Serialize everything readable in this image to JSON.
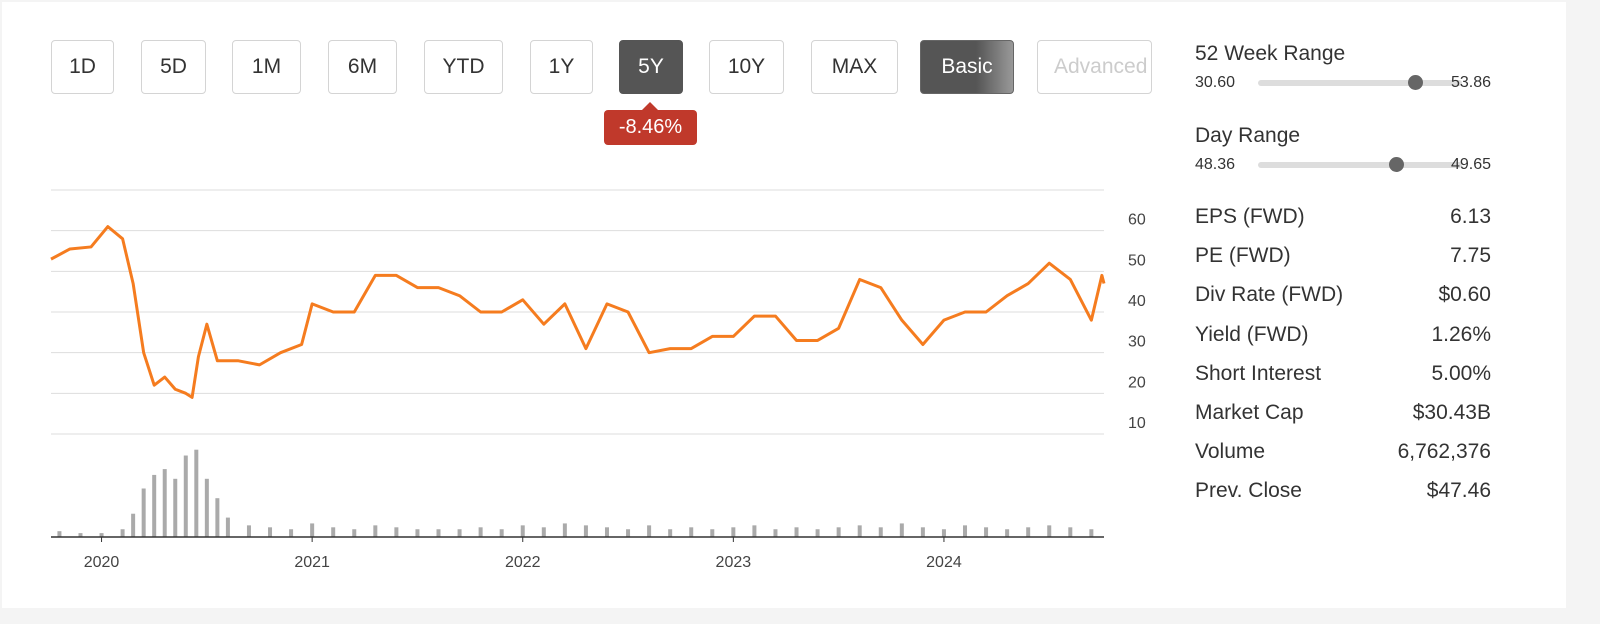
{
  "range_buttons": [
    "1D",
    "5D",
    "1M",
    "6M",
    "YTD",
    "1Y",
    "5Y",
    "10Y",
    "MAX"
  ],
  "view_buttons": [
    "Basic",
    "Advanced"
  ],
  "change_badge": "-8.46%",
  "stats": {
    "week52": {
      "label": "52 Week Range",
      "low": "30.60",
      "high": "53.86"
    },
    "day": {
      "label": "Day Range",
      "low": "48.36",
      "high": "49.65"
    },
    "rows": [
      [
        "EPS (FWD)",
        "6.13"
      ],
      [
        "PE (FWD)",
        "7.75"
      ],
      [
        "Div Rate (FWD)",
        "$0.60"
      ],
      [
        "Yield (FWD)",
        "1.26%"
      ],
      [
        "Short Interest",
        "5.00%"
      ],
      [
        "Market Cap",
        "$30.43B"
      ],
      [
        "Volume",
        "6,762,376"
      ],
      [
        "Prev. Close",
        "$47.46"
      ]
    ]
  },
  "chart_data": {
    "type": "line",
    "color": "#f57c1f",
    "volume_color": "#aaaaaa",
    "xlim": [
      2019.76,
      2024.76
    ],
    "xticks": [
      2020,
      2021,
      2022,
      2023,
      2024
    ],
    "ylim": [
      10,
      70
    ],
    "yticks": [
      10,
      20,
      30,
      40,
      50,
      60
    ],
    "grid": true,
    "x": [
      2019.76,
      2019.85,
      2019.95,
      2020.03,
      2020.1,
      2020.15,
      2020.2,
      2020.25,
      2020.3,
      2020.35,
      2020.4,
      2020.43,
      2020.46,
      2020.5,
      2020.55,
      2020.65,
      2020.75,
      2020.85,
      2020.95,
      2021.0,
      2021.1,
      2021.2,
      2021.3,
      2021.4,
      2021.5,
      2021.6,
      2021.7,
      2021.8,
      2021.9,
      2022.0,
      2022.1,
      2022.2,
      2022.3,
      2022.4,
      2022.5,
      2022.6,
      2022.7,
      2022.8,
      2022.9,
      2023.0,
      2023.1,
      2023.2,
      2023.3,
      2023.4,
      2023.5,
      2023.6,
      2023.7,
      2023.8,
      2023.9,
      2024.0,
      2024.1,
      2024.2,
      2024.3,
      2024.4,
      2024.5,
      2024.6,
      2024.7,
      2024.75,
      2024.76
    ],
    "values": [
      53,
      55.5,
      56,
      61,
      58,
      47,
      30,
      22,
      24,
      21,
      20,
      19,
      29,
      37,
      28,
      28,
      27,
      30,
      32,
      42,
      40,
      40,
      49,
      49,
      46,
      46,
      44,
      40,
      40,
      43,
      37,
      42,
      31,
      42,
      40,
      30,
      31,
      31,
      34,
      34,
      39,
      39,
      33,
      33,
      36,
      48,
      46,
      38,
      32,
      38,
      40,
      40,
      44,
      47,
      52,
      48,
      38,
      49,
      47
    ],
    "volume": {
      "ylim": [
        0,
        50000000
      ],
      "x": [
        2019.8,
        2019.9,
        2020.0,
        2020.1,
        2020.15,
        2020.2,
        2020.25,
        2020.3,
        2020.35,
        2020.4,
        2020.45,
        2020.5,
        2020.55,
        2020.6,
        2020.7,
        2020.8,
        2020.9,
        2021.0,
        2021.1,
        2021.2,
        2021.3,
        2021.4,
        2021.5,
        2021.6,
        2021.7,
        2021.8,
        2021.9,
        2022.0,
        2022.1,
        2022.2,
        2022.3,
        2022.4,
        2022.5,
        2022.6,
        2022.7,
        2022.8,
        2022.9,
        2023.0,
        2023.1,
        2023.2,
        2023.3,
        2023.4,
        2023.5,
        2023.6,
        2023.7,
        2023.8,
        2023.9,
        2024.0,
        2024.1,
        2024.2,
        2024.3,
        2024.4,
        2024.5,
        2024.6,
        2024.7
      ],
      "values": [
        3000000,
        2000000,
        2000000,
        4000000,
        12000000,
        25000000,
        32000000,
        35000000,
        30000000,
        42000000,
        45000000,
        30000000,
        20000000,
        10000000,
        6000000,
        5000000,
        4000000,
        7000000,
        5000000,
        4000000,
        6000000,
        5000000,
        4000000,
        4000000,
        4000000,
        5000000,
        4000000,
        6000000,
        5000000,
        7000000,
        6000000,
        5000000,
        4000000,
        6000000,
        4000000,
        5000000,
        4000000,
        5000000,
        6000000,
        4000000,
        5000000,
        4000000,
        5000000,
        6000000,
        5000000,
        7000000,
        5000000,
        4000000,
        6000000,
        5000000,
        4000000,
        5000000,
        6000000,
        5000000,
        4000000
      ]
    }
  }
}
